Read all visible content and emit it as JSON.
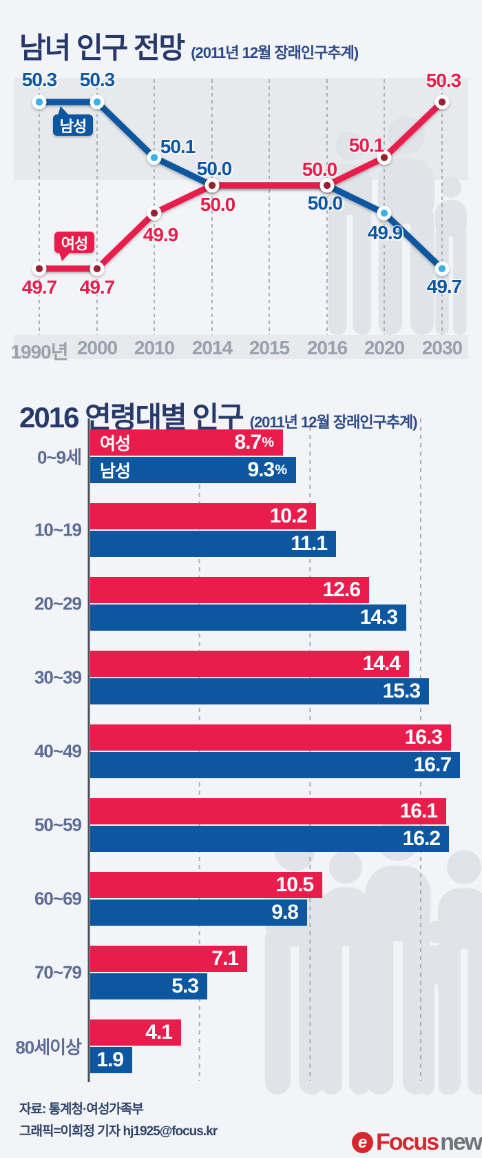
{
  "charts": {
    "population_outlook": {
      "title": "남녀 인구 전망",
      "subtitle": "(2011년 12월 장래인구추계)"
    },
    "age_distribution": {
      "title": "2016 연령대별 인구",
      "subtitle": "(2011년 12월 장래인구추계)"
    }
  },
  "chart_data": [
    {
      "type": "line",
      "title": "남녀 인구 전망 (2011년 12월 장래인구추계)",
      "unit": "%",
      "categories": [
        "1990년",
        "2000",
        "2010",
        "2014",
        "2015",
        "2016",
        "2020",
        "2030"
      ],
      "series": [
        {
          "name": "남성",
          "color": "#0d57a0",
          "point_color": "#38b3e8",
          "values": [
            50.3,
            50.3,
            50.1,
            50.0,
            null,
            50.0,
            49.9,
            49.7
          ]
        },
        {
          "name": "여성",
          "color": "#e91d4c",
          "point_color": "#962430",
          "values": [
            49.7,
            49.7,
            49.9,
            50.0,
            null,
            50.0,
            50.1,
            50.3
          ]
        }
      ],
      "ylim": [
        49.55,
        50.45
      ],
      "legend_position": "on-chart-callouts",
      "note": "2015 tick has no labeled point; both lines run flat at 50.0 between 2014 and 2016"
    },
    {
      "type": "bar",
      "orientation": "horizontal",
      "title": "2016 연령대별 인구 (2011년 12월 장래인구추계)",
      "unit": "%",
      "categories": [
        "0~9세",
        "10~19",
        "20~29",
        "30~39",
        "40~49",
        "50~59",
        "60~69",
        "70~79",
        "80세이상"
      ],
      "series": [
        {
          "name": "여성",
          "color": "#e91d4c",
          "values": [
            8.7,
            10.2,
            12.6,
            14.4,
            16.3,
            16.1,
            10.5,
            7.1,
            4.1
          ]
        },
        {
          "name": "남성",
          "color": "#0d57a0",
          "values": [
            9.3,
            11.1,
            14.3,
            15.3,
            16.7,
            16.2,
            9.8,
            5.3,
            1.9
          ]
        }
      ],
      "xlim": [
        0,
        17.8
      ],
      "gridlines": [
        5,
        10,
        15
      ],
      "value_suffix_first_row": "%",
      "legend_position": "inside-first-bars"
    }
  ],
  "footer": {
    "source": "자료: 통계청·여성가족부",
    "credit": "그래픽=이희정 기자 hj1925@focus.kr",
    "logo": {
      "icon_letter": "e",
      "brand": "Focus",
      "suffix": "news"
    }
  },
  "colors": {
    "background": "#f2f4f8",
    "band": "#e7e9ed",
    "silhouette": "#e0e3e8",
    "male": "#0d57a0",
    "female": "#e91d4c",
    "male_dot": "#38b3e8",
    "female_dot": "#962430",
    "title_navy": "#27386a",
    "year_label": "#9aa1ac",
    "age_label": "#5c6c95",
    "grid": "#aab0ba"
  }
}
